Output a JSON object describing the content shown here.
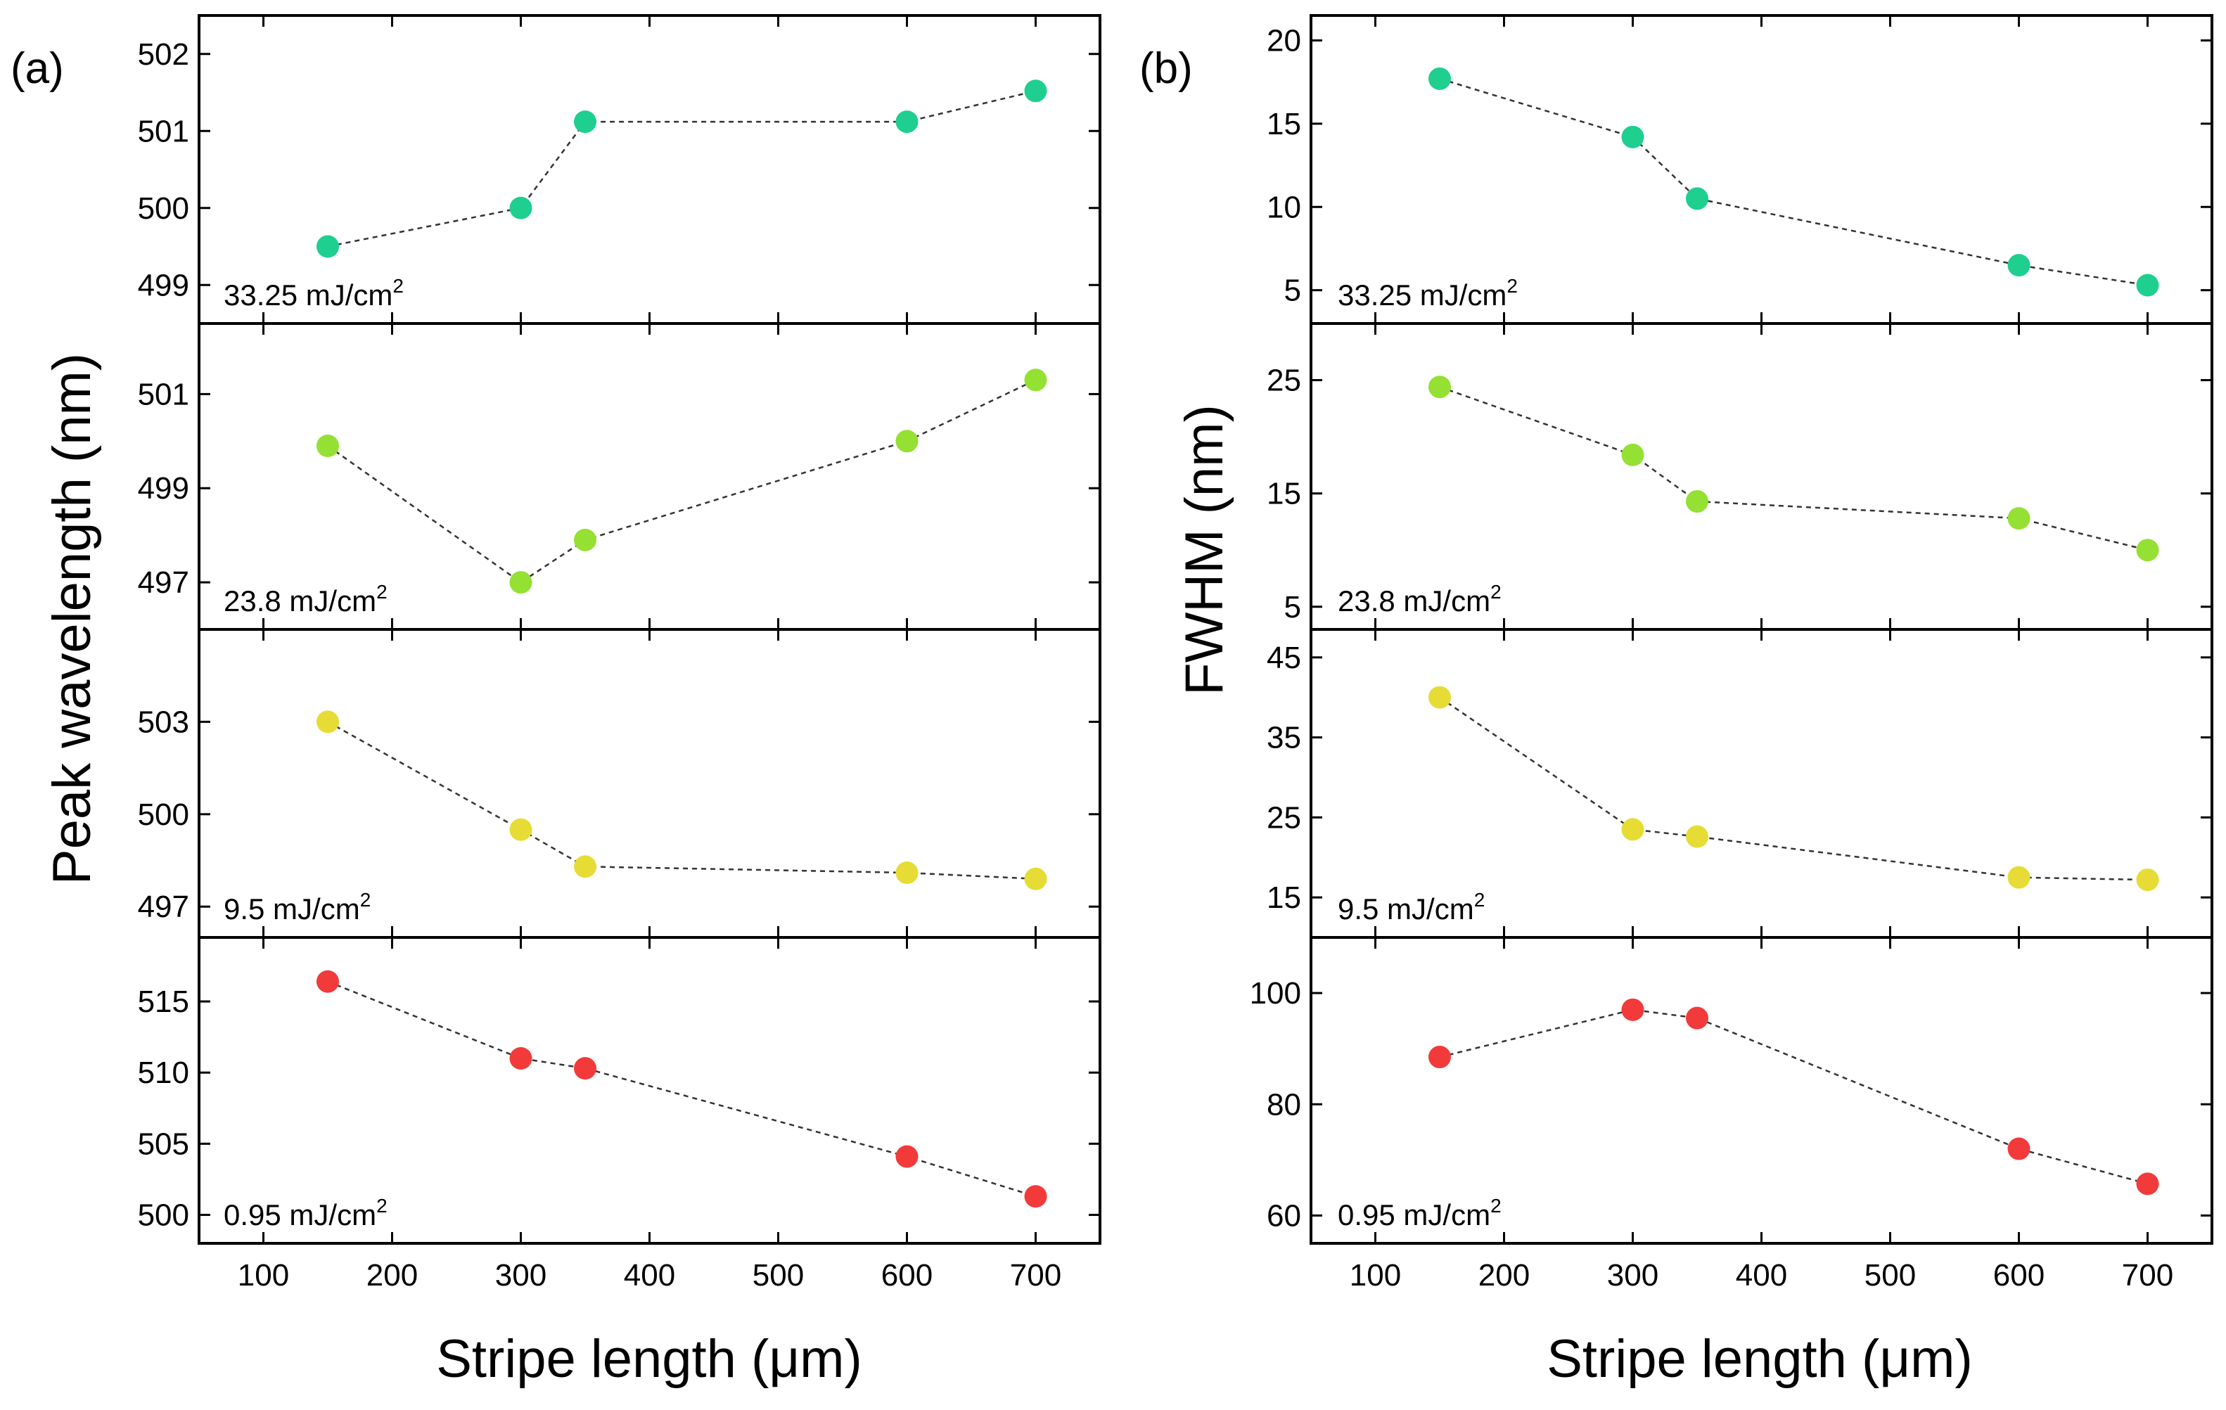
{
  "chart_data": [
    {
      "panel": "(a)",
      "type": "scatter",
      "xlabel": "Stripe length (μm)",
      "ylabel": "Peak wavelength (nm)",
      "x_ticks": [
        "100",
        "200",
        "300",
        "400",
        "500",
        "600",
        "700"
      ],
      "xlim": [
        50,
        750
      ],
      "subplots": [
        {
          "series_name": "33.25 mJ/cm2",
          "annot_main": "33.25 mJ/cm",
          "annot_sup": "2",
          "color": "#1ecf8f",
          "x": [
            150,
            300,
            350,
            600,
            700
          ],
          "y": [
            499.5,
            500.0,
            501.12,
            501.12,
            501.52
          ],
          "ylim": [
            498.5,
            502.5
          ],
          "y_ticks": [
            "499",
            "500",
            "501",
            "502"
          ]
        },
        {
          "series_name": "23.8 mJ/cm2",
          "annot_main": "23.8 mJ/cm",
          "annot_sup": "2",
          "color": "#94e033",
          "x": [
            150,
            300,
            350,
            600,
            700
          ],
          "y": [
            499.9,
            497.0,
            497.9,
            500.0,
            501.3
          ],
          "ylim": [
            496.0,
            502.5
          ],
          "y_ticks": [
            "497",
            "499",
            "501"
          ]
        },
        {
          "series_name": "9.5 mJ/cm2",
          "annot_main": "9.5 mJ/cm",
          "annot_sup": "2",
          "color": "#e6dc35",
          "x": [
            150,
            300,
            350,
            600,
            700
          ],
          "y": [
            503.0,
            499.5,
            498.3,
            498.1,
            497.9
          ],
          "ylim": [
            496.0,
            506.0
          ],
          "y_ticks": [
            "497",
            "500",
            "503"
          ]
        },
        {
          "series_name": "0.95 mJ/cm2",
          "annot_main": "0.95 mJ/cm",
          "annot_sup": "2",
          "color": "#f23a3a",
          "x": [
            150,
            300,
            350,
            600,
            700
          ],
          "y": [
            516.4,
            511.0,
            510.3,
            504.1,
            501.3
          ],
          "ylim": [
            498.0,
            519.5
          ],
          "y_ticks": [
            "500",
            "505",
            "510",
            "515"
          ]
        }
      ]
    },
    {
      "panel": "(b)",
      "type": "scatter",
      "xlabel": "Stripe length (μm)",
      "ylabel": "FWHM (nm)",
      "x_ticks": [
        "100",
        "200",
        "300",
        "400",
        "500",
        "600",
        "700"
      ],
      "xlim": [
        50,
        750
      ],
      "subplots": [
        {
          "series_name": "33.25 mJ/cm2",
          "annot_main": "33.25 mJ/cm",
          "annot_sup": "2",
          "color": "#1ecf8f",
          "x": [
            150,
            300,
            350,
            600,
            700
          ],
          "y": [
            17.7,
            14.2,
            10.5,
            6.5,
            5.3
          ],
          "ylim": [
            3.0,
            21.5
          ],
          "y_ticks": [
            "5",
            "10",
            "15",
            "20"
          ]
        },
        {
          "series_name": "23.8 mJ/cm2",
          "annot_main": "23.8 mJ/cm",
          "annot_sup": "2",
          "color": "#94e033",
          "x": [
            150,
            300,
            350,
            600,
            700
          ],
          "y": [
            24.4,
            18.4,
            14.3,
            12.8,
            10.0
          ],
          "ylim": [
            3.0,
            30.0
          ],
          "y_ticks": [
            "5",
            "15",
            "25"
          ]
        },
        {
          "series_name": "9.5 mJ/cm2",
          "annot_main": "9.5 mJ/cm",
          "annot_sup": "2",
          "color": "#e6dc35",
          "x": [
            150,
            300,
            350,
            600,
            700
          ],
          "y": [
            40.0,
            23.5,
            22.6,
            17.5,
            17.2
          ],
          "ylim": [
            10.0,
            48.5
          ],
          "y_ticks": [
            "15",
            "25",
            "35",
            "45"
          ]
        },
        {
          "series_name": "0.95 mJ/cm2",
          "annot_main": "0.95 mJ/cm",
          "annot_sup": "2",
          "color": "#f23a3a",
          "x": [
            150,
            300,
            350,
            600,
            700
          ],
          "y": [
            88.5,
            97.0,
            95.5,
            72.0,
            65.7
          ],
          "ylim": [
            55.0,
            110.0
          ],
          "y_ticks": [
            "60",
            "80",
            "100"
          ]
        }
      ]
    }
  ]
}
